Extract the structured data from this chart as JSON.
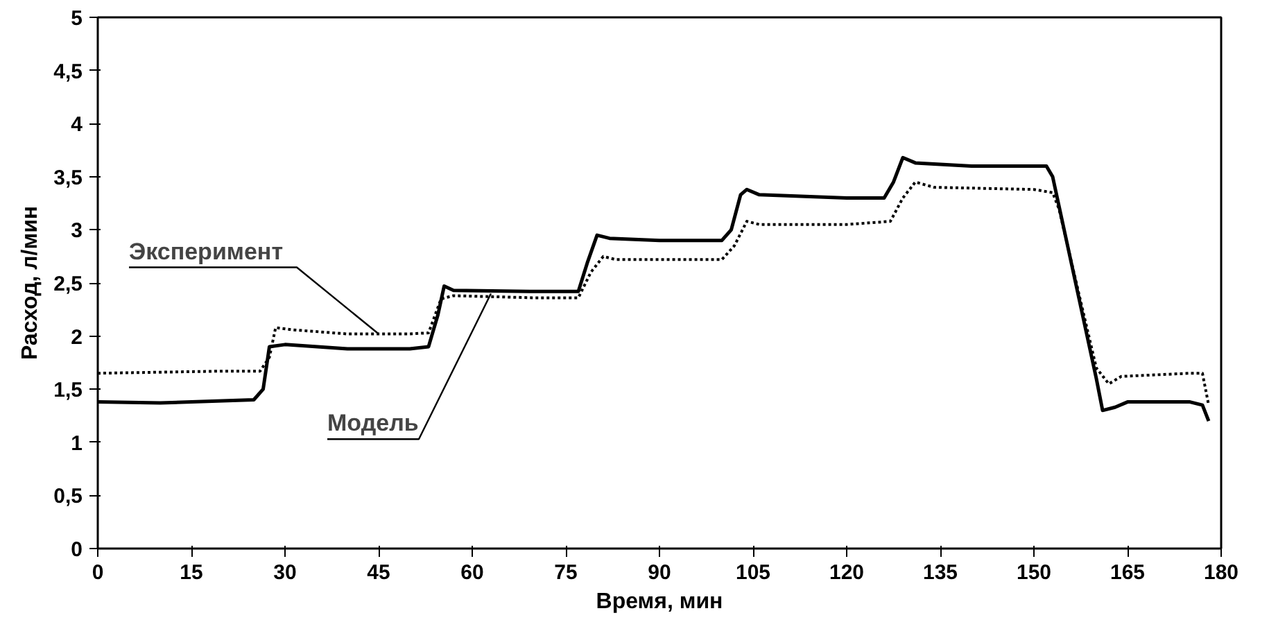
{
  "chart_data": {
    "type": "line",
    "xlabel": "Время, мин",
    "ylabel": "Расход, л/мин",
    "xlim": [
      0,
      180
    ],
    "ylim": [
      0,
      5
    ],
    "xticks": [
      0,
      15,
      30,
      45,
      60,
      75,
      90,
      105,
      120,
      135,
      150,
      165,
      180
    ],
    "yticks": [
      0,
      {
        "value": 0.5,
        "label": "0,5"
      },
      1,
      {
        "value": 1.5,
        "label": "1,5"
      },
      2,
      {
        "value": 2.5,
        "label": "2,5"
      },
      3,
      {
        "value": 3.5,
        "label": "3,5"
      },
      4,
      {
        "value": 4.5,
        "label": "4,5"
      },
      5
    ],
    "grid": false,
    "marker": "none",
    "series": [
      {
        "color": "#000000",
        "line_style": "solid",
        "x": [
          0,
          10,
          20,
          25,
          26.5,
          27.5,
          30,
          40,
          50,
          53,
          54.5,
          55.5,
          57,
          70,
          77,
          78.5,
          80,
          82,
          90,
          100,
          101.5,
          103,
          104,
          106,
          120,
          126,
          127.5,
          129,
          131,
          140,
          150,
          152,
          153,
          160,
          161,
          163,
          165,
          175,
          177,
          178
        ],
        "values": [
          1.38,
          1.37,
          1.39,
          1.4,
          1.5,
          1.9,
          1.92,
          1.88,
          1.88,
          1.9,
          2.2,
          2.47,
          2.43,
          2.42,
          2.42,
          2.7,
          2.95,
          2.92,
          2.9,
          2.9,
          3.0,
          3.33,
          3.38,
          3.33,
          3.3,
          3.3,
          3.45,
          3.68,
          3.63,
          3.6,
          3.6,
          3.6,
          3.5,
          1.6,
          1.3,
          1.33,
          1.38,
          1.38,
          1.35,
          1.2
        ]
      },
      {
        "color": "#000000",
        "line_style": "dotted",
        "x": [
          0,
          10,
          20,
          26,
          27.5,
          28.5,
          31,
          40,
          50,
          53,
          55,
          57,
          70,
          77,
          79,
          81,
          83,
          100,
          102,
          104,
          106,
          120,
          127,
          129,
          131,
          134,
          150,
          153,
          154,
          160,
          162,
          164,
          175,
          177,
          178
        ],
        "values": [
          1.65,
          1.66,
          1.67,
          1.67,
          1.8,
          2.08,
          2.06,
          2.02,
          2.02,
          2.03,
          2.35,
          2.38,
          2.36,
          2.36,
          2.6,
          2.75,
          2.72,
          2.72,
          2.85,
          3.08,
          3.05,
          3.05,
          3.08,
          3.3,
          3.45,
          3.4,
          3.38,
          3.35,
          3.2,
          1.7,
          1.55,
          1.62,
          1.65,
          1.65,
          1.35
        ]
      }
    ],
    "annotations": [
      {
        "text": "Эксперимент",
        "x": 45,
        "y": 2.02
      },
      {
        "text": "Модель",
        "x": 63,
        "y": 2.4
      }
    ]
  }
}
